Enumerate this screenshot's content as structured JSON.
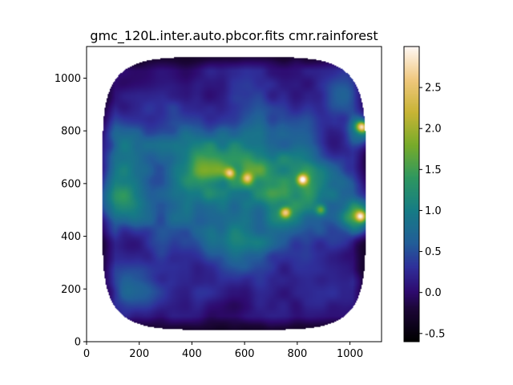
{
  "chart_data": {
    "type": "heatmap",
    "title": "gmc_120L.inter.auto.pbcor.fits cmr.rainforest",
    "xlabel": "",
    "ylabel": "",
    "xlim": [
      0,
      1120
    ],
    "ylim": [
      0,
      1120
    ],
    "x_ticks": [
      0,
      200,
      400,
      600,
      800,
      1000
    ],
    "y_ticks": [
      0,
      200,
      400,
      600,
      800,
      1000
    ],
    "grid": false,
    "colormap": "cmr.rainforest",
    "colorbar": {
      "range": [
        -0.6,
        3.0
      ],
      "ticks": [
        "-0.5",
        "0.0",
        "0.5",
        "1.0",
        "1.5",
        "2.0",
        "2.5"
      ],
      "tick_values": [
        -0.5,
        0.0,
        0.5,
        1.0,
        1.5,
        2.0,
        2.5
      ]
    },
    "colormap_stops": [
      {
        "value": -0.6,
        "color": "#000000"
      },
      {
        "value": -0.2,
        "color": "#1c0638"
      },
      {
        "value": 0.0,
        "color": "#2e0a6e"
      },
      {
        "value": 0.3,
        "color": "#2f2f9a"
      },
      {
        "value": 0.6,
        "color": "#225e98"
      },
      {
        "value": 1.0,
        "color": "#167c85"
      },
      {
        "value": 1.4,
        "color": "#2e9860"
      },
      {
        "value": 1.8,
        "color": "#78ab2a"
      },
      {
        "value": 2.2,
        "color": "#c8b435"
      },
      {
        "value": 2.6,
        "color": "#f0c87e"
      },
      {
        "value": 3.0,
        "color": "#fff8f4"
      }
    ],
    "image_footprint_x": [
      60,
      1060
    ],
    "image_footprint_y": [
      45,
      1080
    ],
    "emission_features": [
      {
        "x": 560,
        "y": 600,
        "amp": 1.2,
        "sigma": 140
      },
      {
        "x": 800,
        "y": 600,
        "amp": 1.3,
        "sigma": 110
      },
      {
        "x": 420,
        "y": 620,
        "amp": 0.7,
        "sigma": 90
      },
      {
        "x": 120,
        "y": 540,
        "amp": 0.9,
        "sigma": 70
      },
      {
        "x": 150,
        "y": 740,
        "amp": 0.8,
        "sigma": 70
      },
      {
        "x": 1040,
        "y": 800,
        "amp": 1.5,
        "sigma": 40
      },
      {
        "x": 1040,
        "y": 480,
        "amp": 1.4,
        "sigma": 50
      },
      {
        "x": 960,
        "y": 560,
        "amp": 0.8,
        "sigma": 80
      },
      {
        "x": 180,
        "y": 200,
        "amp": 0.5,
        "sigma": 60
      },
      {
        "x": 330,
        "y": 860,
        "amp": 0.4,
        "sigma": 80
      },
      {
        "x": 700,
        "y": 880,
        "amp": 0.4,
        "sigma": 90
      },
      {
        "x": 1000,
        "y": 940,
        "amp": 0.4,
        "sigma": 60
      },
      {
        "x": 640,
        "y": 300,
        "amp": 0.3,
        "sigma": 120
      },
      {
        "x": 300,
        "y": 420,
        "amp": 0.35,
        "sigma": 80
      }
    ],
    "bright_spots": [
      {
        "x": 820,
        "y": 615,
        "amp": 1.8
      },
      {
        "x": 1045,
        "y": 815,
        "amp": 1.8
      },
      {
        "x": 1040,
        "y": 475,
        "amp": 1.6
      },
      {
        "x": 545,
        "y": 640,
        "amp": 1.4
      },
      {
        "x": 755,
        "y": 490,
        "amp": 1.5
      },
      {
        "x": 610,
        "y": 620,
        "amp": 1.1
      },
      {
        "x": 890,
        "y": 500,
        "amp": 1.0
      }
    ]
  }
}
